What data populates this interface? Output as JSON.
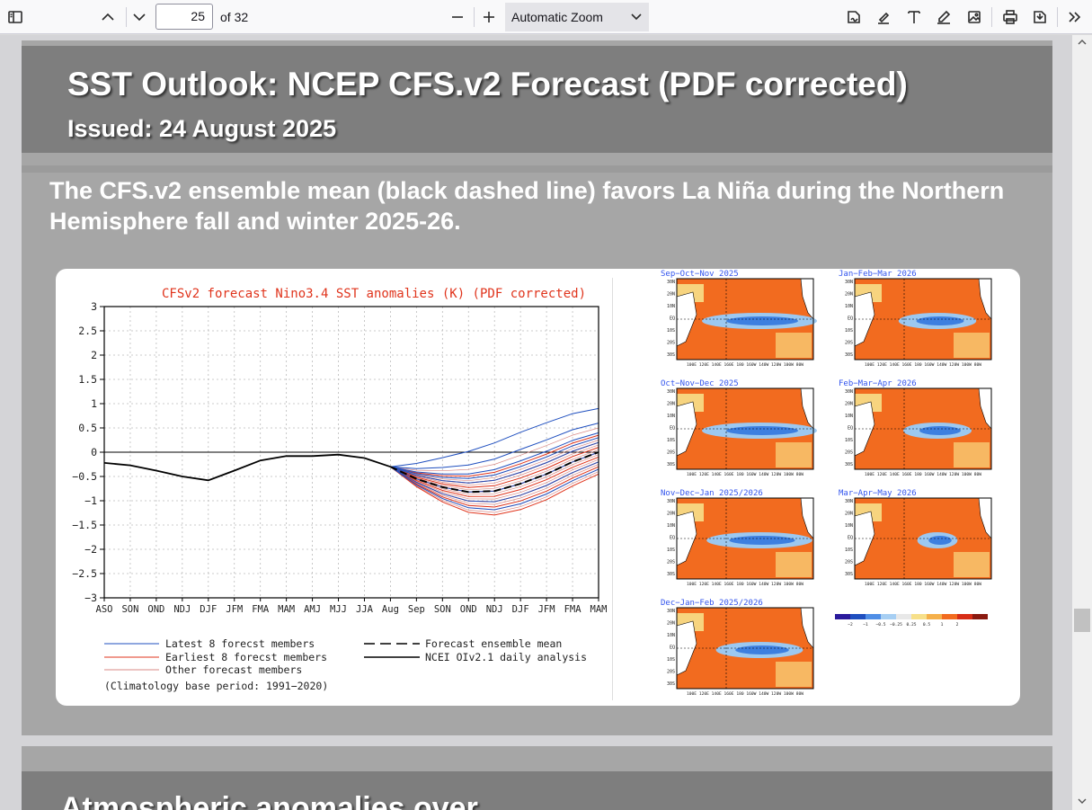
{
  "toolbar": {
    "page_number": "25",
    "page_count": "of 32",
    "zoom_label": "Automatic Zoom",
    "icons": [
      "sidebar-toggle-icon",
      "previous-page-icon",
      "next-page-icon",
      "zoom-out-icon",
      "zoom-in-icon",
      "chevron-down-icon",
      "signature-icon",
      "highlight-icon",
      "text-icon",
      "draw-icon",
      "image-icon",
      "print-icon",
      "save-icon",
      "tools-icon"
    ]
  },
  "slide": {
    "title": "SST Outlook: NCEP CFS.v2 Forecast (PDF corrected)",
    "issued": "Issued: 24 August 2025",
    "subtitle": "The CFS.v2 ensemble mean (black dashed line) favors La Niña during the Northern Hemisphere fall and winter 2025-26."
  },
  "next_page": {
    "title_partial": "Atmospheric anomalies over"
  },
  "chart_data": {
    "type": "line",
    "title": "CFSv2 forecast Nino3.4 SST anomalies (K) (PDF corrected)",
    "categories": [
      "ASO",
      "SON",
      "OND",
      "NDJ",
      "DJF",
      "JFM",
      "FMA",
      "MAM",
      "AMJ",
      "MJJ",
      "JJA",
      "Aug",
      "Sep",
      "SON",
      "OND",
      "NDJ",
      "DJF",
      "JFM",
      "FMA",
      "MAM"
    ],
    "ylim": [
      -3,
      3
    ],
    "yticks": [
      "3",
      "2.5",
      "2",
      "1.5",
      "1",
      "0.5",
      "0",
      "−0.5",
      "−1",
      "−1.5",
      "−2",
      "−2.5",
      "−3"
    ],
    "grid": true,
    "analysis": {
      "name": "NCEI OIv2.1 daily analysis",
      "values": [
        -0.22,
        -0.27,
        -0.38,
        -0.5,
        -0.58,
        -0.38,
        -0.17,
        -0.08,
        -0.08,
        -0.05,
        -0.12,
        -0.3
      ]
    },
    "ensemble_mean": {
      "name": "Forecast ensemble mean",
      "values": [
        -0.3,
        -0.55,
        -0.72,
        -0.82,
        -0.8,
        -0.65,
        -0.45,
        -0.2,
        0.0
      ]
    },
    "latest_members": {
      "name": "Latest 8 forecst members",
      "color": "#1f4fbf"
    },
    "earliest_members": {
      "name": "Earliest 8 forecst members",
      "color": "#e0341c"
    },
    "other_members": {
      "name": "Other forecast members",
      "color": "#d98a86"
    },
    "footnote": "(Climatology base period: 1991−2020)",
    "legend_position": "bottom"
  },
  "maps": {
    "panels": [
      "Sep−Oct−Nov 2025",
      "Jan−Feb−Mar 2026",
      "Oct−Nov−Dec 2025",
      "Feb−Mar−Apr 2026",
      "Nov−Dec−Jan 2025/2026",
      "Mar−Apr−May 2026",
      "Dec−Jan−Feb 2025/2026"
    ],
    "lat_labels": [
      "30N",
      "20N",
      "10N",
      "EQ",
      "10S",
      "20S",
      "30S"
    ],
    "lon_labels": "100E 120E 140E 160E 180 160W 140W 120W 100W 80W",
    "colorbar_labels": [
      "−2",
      "−1",
      "−0.5",
      "−0.25",
      "0.25",
      "0.5",
      "1",
      "2"
    ],
    "colors": {
      "warm": "#f26b1f",
      "cool": "#3d7fe0"
    }
  }
}
